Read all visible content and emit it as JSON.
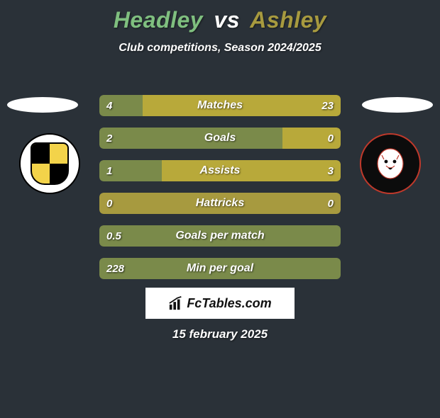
{
  "title": {
    "player1": "Headley",
    "vs": "vs",
    "player2": "Ashley",
    "player1_color": "#7fbf7f",
    "player2_color": "#a79a3f"
  },
  "subtitle": "Club competitions, Season 2024/2025",
  "colors": {
    "left_bar": "#7a8a4a",
    "right_bar": "#b8a93a",
    "neutral_bar": "#a79a3f",
    "background": "#2a3138",
    "text": "#ffffff"
  },
  "bars": [
    {
      "label": "Matches",
      "left_value": "4",
      "right_value": "23",
      "left_width_pct": 18,
      "right_width_pct": 82,
      "left_color": "#7a8a4a",
      "right_color": "#b8a93a"
    },
    {
      "label": "Goals",
      "left_value": "2",
      "right_value": "0",
      "left_width_pct": 76,
      "right_width_pct": 24,
      "left_color": "#7a8a4a",
      "right_color": "#b8a93a"
    },
    {
      "label": "Assists",
      "left_value": "1",
      "right_value": "3",
      "left_width_pct": 26,
      "right_width_pct": 74,
      "left_color": "#7a8a4a",
      "right_color": "#b8a93a"
    },
    {
      "label": "Hattricks",
      "left_value": "0",
      "right_value": "0",
      "left_width_pct": 50,
      "right_width_pct": 50,
      "left_color": "#a79a3f",
      "right_color": "#a79a3f"
    },
    {
      "label": "Goals per match",
      "left_value": "0.5",
      "right_value": "",
      "left_width_pct": 100,
      "right_width_pct": 0,
      "left_color": "#7a8a4a",
      "right_color": "#b8a93a"
    },
    {
      "label": "Min per goal",
      "left_value": "228",
      "right_value": "",
      "left_width_pct": 100,
      "right_width_pct": 0,
      "left_color": "#7a8a4a",
      "right_color": "#b8a93a"
    }
  ],
  "brand": "FcTables.com",
  "date": "15 february 2025",
  "clubs": {
    "left_name": "port-vale-badge",
    "right_name": "salford-badge"
  }
}
